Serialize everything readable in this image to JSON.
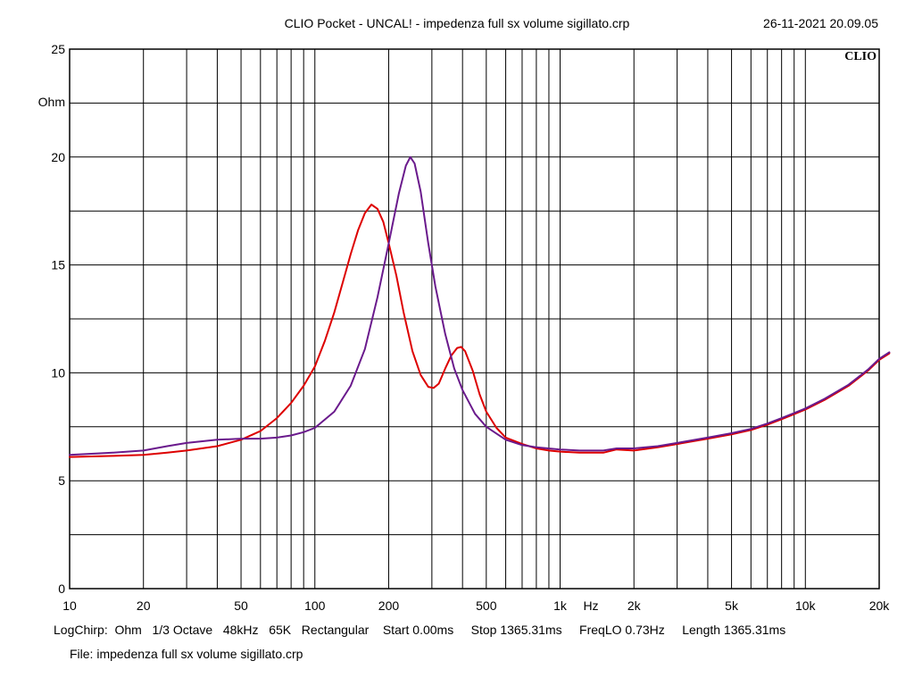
{
  "header": {
    "title": "CLIO Pocket - UNCAL! - impedenza full sx volume sigillato.crp",
    "timestamp": "26-11-2021 20.09.05"
  },
  "logo": "CLIO",
  "footer": {
    "settings": "LogChirp:  Ohm   1/3 Octave   48kHz   65K   Rectangular    Start 0.00ms     Stop 1365.31ms     FreqLO 0.73Hz     Length 1365.31ms",
    "file": "File: impedenza full sx volume sigillato.crp"
  },
  "chart_data": {
    "type": "line",
    "title": "CLIO Pocket - UNCAL! - impedenza full sx volume sigillato.crp",
    "x_scale": "log",
    "xlim": [
      10,
      20000
    ],
    "ylim": [
      0,
      25
    ],
    "xlabel": "Hz",
    "ylabel": "Ohm",
    "grid": true,
    "x_ticks": [
      {
        "value": 10,
        "label": "10"
      },
      {
        "value": 20,
        "label": "20"
      },
      {
        "value": 50,
        "label": "50"
      },
      {
        "value": 100,
        "label": "100"
      },
      {
        "value": 200,
        "label": "200"
      },
      {
        "value": 500,
        "label": "500"
      },
      {
        "value": 1000,
        "label": "1k"
      },
      {
        "value": 2000,
        "label": "2k"
      },
      {
        "value": 5000,
        "label": "5k"
      },
      {
        "value": 10000,
        "label": "10k"
      },
      {
        "value": 20000,
        "label": "20k"
      }
    ],
    "y_ticks": [
      {
        "value": 0,
        "label": "0"
      },
      {
        "value": 5,
        "label": "5"
      },
      {
        "value": 10,
        "label": "10"
      },
      {
        "value": 15,
        "label": "15"
      },
      {
        "value": 20,
        "label": "20"
      },
      {
        "value": 25,
        "label": "25"
      }
    ],
    "series": [
      {
        "color": "#dd0000",
        "points": [
          [
            10,
            6.1
          ],
          [
            15,
            6.15
          ],
          [
            20,
            6.2
          ],
          [
            25,
            6.3
          ],
          [
            30,
            6.4
          ],
          [
            40,
            6.6
          ],
          [
            50,
            6.9
          ],
          [
            60,
            7.3
          ],
          [
            70,
            7.9
          ],
          [
            80,
            8.6
          ],
          [
            90,
            9.4
          ],
          [
            100,
            10.3
          ],
          [
            110,
            11.5
          ],
          [
            120,
            12.8
          ],
          [
            130,
            14.2
          ],
          [
            140,
            15.5
          ],
          [
            150,
            16.6
          ],
          [
            160,
            17.4
          ],
          [
            170,
            17.8
          ],
          [
            180,
            17.6
          ],
          [
            190,
            17.0
          ],
          [
            200,
            16.0
          ],
          [
            215,
            14.5
          ],
          [
            230,
            12.8
          ],
          [
            250,
            11.0
          ],
          [
            270,
            9.9
          ],
          [
            290,
            9.35
          ],
          [
            305,
            9.3
          ],
          [
            320,
            9.5
          ],
          [
            340,
            10.2
          ],
          [
            360,
            10.8
          ],
          [
            380,
            11.15
          ],
          [
            395,
            11.2
          ],
          [
            410,
            11.0
          ],
          [
            440,
            10.1
          ],
          [
            470,
            9.0
          ],
          [
            500,
            8.2
          ],
          [
            550,
            7.45
          ],
          [
            600,
            7.0
          ],
          [
            700,
            6.7
          ],
          [
            800,
            6.5
          ],
          [
            900,
            6.4
          ],
          [
            1000,
            6.35
          ],
          [
            1200,
            6.3
          ],
          [
            1500,
            6.3
          ],
          [
            1700,
            6.45
          ],
          [
            2000,
            6.4
          ],
          [
            2500,
            6.55
          ],
          [
            3000,
            6.7
          ],
          [
            4000,
            6.95
          ],
          [
            5000,
            7.15
          ],
          [
            6000,
            7.35
          ],
          [
            7000,
            7.6
          ],
          [
            8000,
            7.85
          ],
          [
            10000,
            8.3
          ],
          [
            12000,
            8.75
          ],
          [
            15000,
            9.4
          ],
          [
            18000,
            10.1
          ],
          [
            20000,
            10.6
          ],
          [
            22000,
            10.9
          ]
        ]
      },
      {
        "color": "#6a1a8c",
        "points": [
          [
            10,
            6.2
          ],
          [
            15,
            6.3
          ],
          [
            20,
            6.4
          ],
          [
            25,
            6.6
          ],
          [
            30,
            6.75
          ],
          [
            40,
            6.9
          ],
          [
            50,
            6.95
          ],
          [
            60,
            6.95
          ],
          [
            70,
            7.0
          ],
          [
            80,
            7.1
          ],
          [
            90,
            7.25
          ],
          [
            100,
            7.45
          ],
          [
            120,
            8.2
          ],
          [
            140,
            9.4
          ],
          [
            160,
            11.1
          ],
          [
            180,
            13.5
          ],
          [
            200,
            16.0
          ],
          [
            220,
            18.3
          ],
          [
            235,
            19.6
          ],
          [
            245,
            20.0
          ],
          [
            255,
            19.7
          ],
          [
            270,
            18.4
          ],
          [
            290,
            16.0
          ],
          [
            310,
            14.0
          ],
          [
            340,
            11.8
          ],
          [
            370,
            10.2
          ],
          [
            400,
            9.2
          ],
          [
            450,
            8.1
          ],
          [
            500,
            7.5
          ],
          [
            600,
            6.9
          ],
          [
            700,
            6.65
          ],
          [
            800,
            6.55
          ],
          [
            1000,
            6.45
          ],
          [
            1200,
            6.4
          ],
          [
            1500,
            6.4
          ],
          [
            1700,
            6.5
          ],
          [
            2000,
            6.5
          ],
          [
            2500,
            6.6
          ],
          [
            3000,
            6.75
          ],
          [
            4000,
            7.0
          ],
          [
            5000,
            7.2
          ],
          [
            6000,
            7.4
          ],
          [
            7000,
            7.65
          ],
          [
            8000,
            7.9
          ],
          [
            10000,
            8.35
          ],
          [
            12000,
            8.8
          ],
          [
            15000,
            9.45
          ],
          [
            18000,
            10.15
          ],
          [
            20000,
            10.65
          ],
          [
            22000,
            10.95
          ]
        ]
      }
    ]
  }
}
